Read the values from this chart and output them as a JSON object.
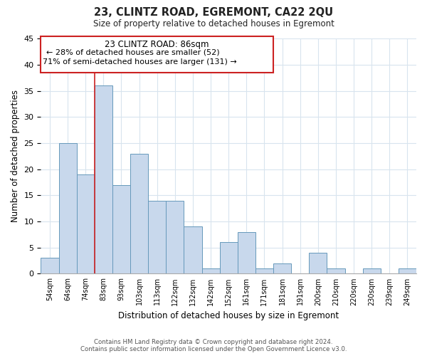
{
  "title": "23, CLINTZ ROAD, EGREMONT, CA22 2QU",
  "subtitle": "Size of property relative to detached houses in Egremont",
  "xlabel": "Distribution of detached houses by size in Egremont",
  "ylabel": "Number of detached properties",
  "bar_color": "#c8d8ec",
  "bar_edge_color": "#6699bb",
  "categories": [
    "54sqm",
    "64sqm",
    "74sqm",
    "83sqm",
    "93sqm",
    "103sqm",
    "113sqm",
    "122sqm",
    "132sqm",
    "142sqm",
    "152sqm",
    "161sqm",
    "171sqm",
    "181sqm",
    "191sqm",
    "200sqm",
    "210sqm",
    "220sqm",
    "230sqm",
    "239sqm",
    "249sqm"
  ],
  "values": [
    3,
    25,
    19,
    36,
    17,
    23,
    14,
    14,
    9,
    1,
    6,
    8,
    1,
    2,
    0,
    4,
    1,
    0,
    1,
    0,
    1
  ],
  "ylim": [
    0,
    45
  ],
  "yticks": [
    0,
    5,
    10,
    15,
    20,
    25,
    30,
    35,
    40,
    45
  ],
  "vline_color": "#cc2222",
  "annotation_title": "23 CLINTZ ROAD: 86sqm",
  "annotation_line1": "← 28% of detached houses are smaller (52)",
  "annotation_line2": "71% of semi-detached houses are larger (131) →",
  "annotation_box_color": "#ffffff",
  "annotation_box_edge": "#cc2222",
  "footer_line1": "Contains HM Land Registry data © Crown copyright and database right 2024.",
  "footer_line2": "Contains public sector information licensed under the Open Government Licence v3.0.",
  "grid_color": "#d8e4ee",
  "bg_color": "#ffffff"
}
